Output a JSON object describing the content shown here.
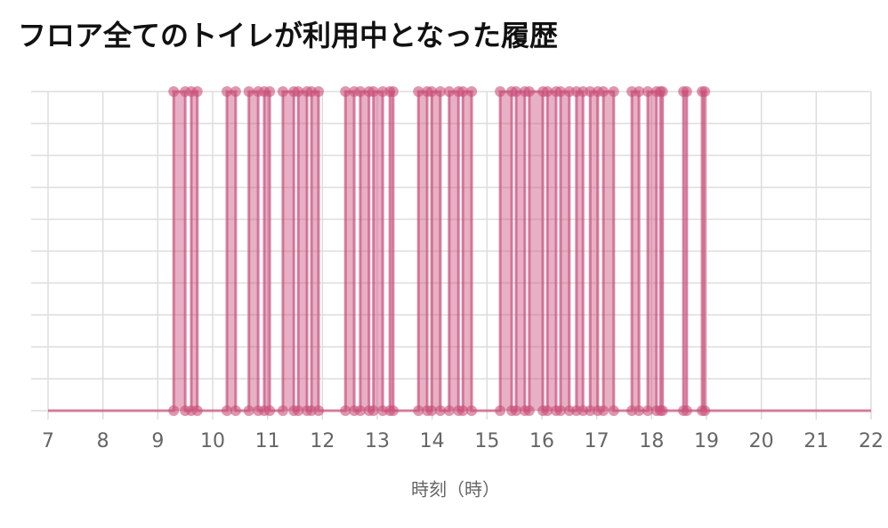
{
  "chart_data": {
    "type": "line",
    "title": "フロア全てのトイレが利用中となった履歴",
    "x_label": "時刻（時）",
    "x": [
      7,
      9.29,
      9.29,
      9.5,
      9.5,
      9.61,
      9.61,
      9.72,
      9.72,
      10.26,
      10.26,
      10.42,
      10.42,
      10.66,
      10.66,
      10.83,
      10.83,
      10.94,
      10.94,
      11.04,
      11.04,
      11.28,
      11.28,
      11.48,
      11.48,
      11.56,
      11.56,
      11.72,
      11.72,
      11.8,
      11.8,
      11.93,
      11.93,
      12.42,
      12.42,
      12.58,
      12.58,
      12.69,
      12.69,
      12.85,
      12.85,
      12.93,
      12.93,
      13.1,
      13.1,
      13.23,
      13.23,
      13.29,
      13.29,
      13.75,
      13.75,
      13.91,
      13.91,
      13.99,
      13.99,
      14.15,
      14.15,
      14.31,
      14.31,
      14.48,
      14.48,
      14.56,
      14.56,
      14.72,
      14.72,
      15.24,
      15.24,
      15.45,
      15.45,
      15.53,
      15.53,
      15.69,
      15.69,
      15.77,
      15.77,
      16.02,
      16.02,
      16.1,
      16.1,
      16.26,
      16.26,
      16.34,
      16.34,
      16.5,
      16.5,
      16.63,
      16.63,
      16.75,
      16.75,
      16.88,
      16.88,
      17.02,
      17.02,
      17.12,
      17.12,
      17.31,
      17.31,
      17.64,
      17.64,
      17.77,
      17.77,
      17.93,
      17.93,
      18.09,
      18.09,
      18.16,
      18.16,
      18.2,
      18.2,
      18.58,
      18.58,
      18.64,
      18.64,
      18.92,
      18.92,
      18.97,
      18.97,
      22
    ],
    "values": [
      0,
      0,
      1,
      1,
      0,
      0,
      1,
      1,
      0,
      0,
      1,
      1,
      0,
      0,
      1,
      1,
      0,
      0,
      1,
      1,
      0,
      0,
      1,
      1,
      0,
      0,
      1,
      1,
      0,
      0,
      1,
      1,
      0,
      0,
      1,
      1,
      0,
      0,
      1,
      1,
      0,
      0,
      1,
      1,
      0,
      0,
      1,
      1,
      0,
      0,
      1,
      1,
      0,
      0,
      1,
      1,
      0,
      0,
      1,
      1,
      0,
      0,
      1,
      1,
      0,
      0,
      1,
      1,
      0,
      0,
      1,
      1,
      0,
      0,
      1,
      1,
      0,
      0,
      1,
      1,
      0,
      0,
      1,
      1,
      0,
      0,
      1,
      1,
      0,
      0,
      1,
      1,
      0,
      0,
      1,
      1,
      0,
      0,
      1,
      1,
      0,
      0,
      1,
      1,
      0,
      0,
      1,
      1,
      0,
      0,
      1,
      1,
      0,
      0,
      1,
      1,
      0,
      0
    ],
    "color": "#c9507a",
    "xlim": [
      7,
      22
    ],
    "xticks": [
      7,
      8,
      9,
      10,
      11,
      12,
      13,
      14,
      15,
      16,
      17,
      18,
      19,
      20,
      21,
      22
    ],
    "ylim": [
      0,
      1
    ],
    "yticks": [
      0,
      0.1,
      0.2,
      0.3,
      0.4,
      0.5,
      0.6,
      0.7,
      0.8,
      0.9,
      1
    ],
    "grid": true
  }
}
